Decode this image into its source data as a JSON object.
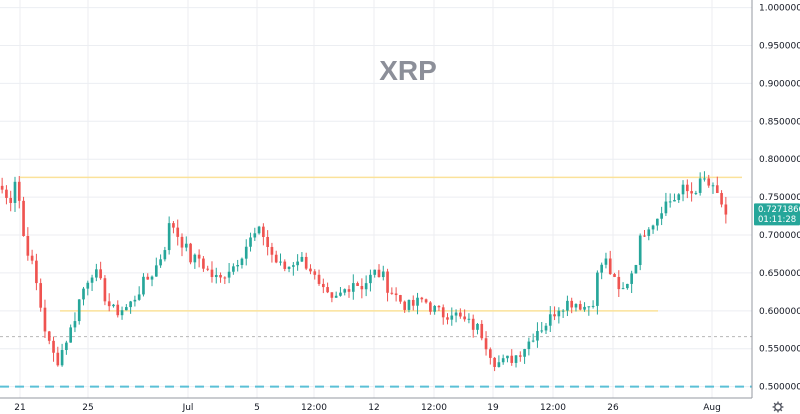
{
  "symbol": "XRP",
  "current_price": {
    "value": "0.72718669",
    "countdown": "01:11:28",
    "color": "#26a69a"
  },
  "colors": {
    "up": "#26a69a",
    "down": "#ef5350",
    "grid": "#eceef2",
    "resistance": "#fbe29a",
    "support_dashed": "#5bc0d6",
    "reference_dotted": "#b8b8b8"
  },
  "settings_icon": "gear-icon",
  "chart_data": {
    "type": "candlestick",
    "x_ticks": [
      "21",
      "25",
      "Jul",
      "5",
      "12:00",
      "12",
      "12:00",
      "19",
      "12:00",
      "26",
      "Aug"
    ],
    "y_ticks": [
      "1.00000000",
      "0.95000000",
      "0.90000000",
      "0.85000000",
      "0.80000000",
      "0.75000000",
      "0.70000000",
      "0.65000000",
      "0.60000000",
      "0.55000000",
      "0.50000000"
    ],
    "ylim": [
      0.485,
      1.01
    ],
    "grid": true,
    "lines": [
      {
        "kind": "resistance",
        "value": 0.776,
        "x_start": "21",
        "x_end": "Aug"
      },
      {
        "kind": "support",
        "value": 0.6,
        "x_start": "21",
        "x_end": "26"
      },
      {
        "kind": "support_dashed",
        "value": 0.5
      },
      {
        "kind": "reference_dotted",
        "value": 0.566
      }
    ],
    "path": [
      0.76,
      0.74,
      0.782,
      0.7,
      0.67,
      0.63,
      0.58,
      0.545,
      0.535,
      0.56,
      0.58,
      0.615,
      0.64,
      0.655,
      0.635,
      0.61,
      0.598,
      0.602,
      0.605,
      0.62,
      0.635,
      0.645,
      0.66,
      0.68,
      0.72,
      0.7,
      0.685,
      0.665,
      0.67,
      0.655,
      0.645,
      0.64,
      0.655,
      0.66,
      0.675,
      0.69,
      0.7,
      0.705,
      0.68,
      0.665,
      0.655,
      0.66,
      0.67,
      0.665,
      0.655,
      0.63,
      0.62,
      0.61,
      0.62,
      0.63,
      0.64,
      0.632,
      0.64,
      0.65,
      0.648,
      0.63,
      0.62,
      0.61,
      0.605,
      0.61,
      0.615,
      0.605,
      0.598,
      0.595,
      0.6,
      0.59,
      0.585,
      0.58,
      0.575,
      0.555,
      0.535,
      0.53,
      0.535,
      0.54,
      0.55,
      0.56,
      0.575,
      0.58,
      0.59,
      0.605,
      0.61,
      0.612,
      0.61,
      0.605,
      0.61,
      0.66,
      0.665,
      0.64,
      0.62,
      0.64,
      0.66,
      0.7,
      0.715,
      0.72,
      0.74,
      0.745,
      0.75,
      0.76,
      0.755,
      0.765,
      0.772,
      0.76,
      0.75,
      0.727
    ]
  }
}
